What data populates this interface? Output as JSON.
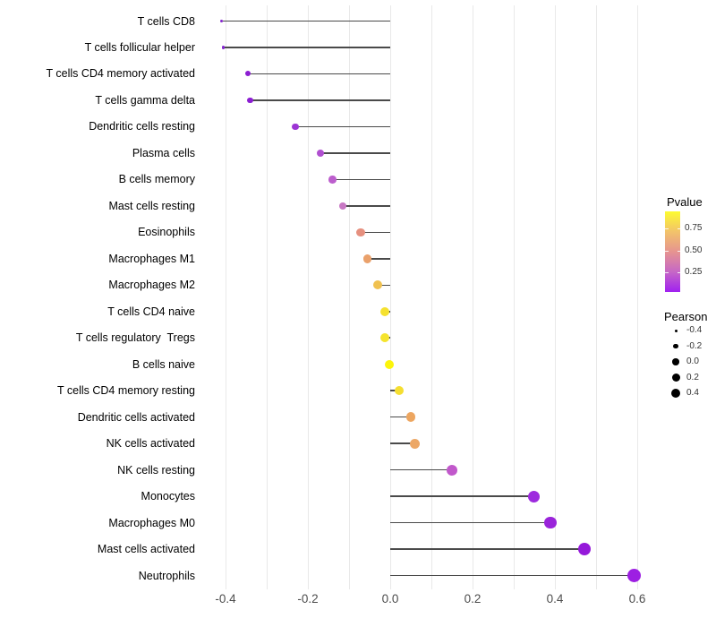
{
  "chart_data": {
    "type": "scatter",
    "variant": "horizontal-lollipop",
    "title": "",
    "xlabel": "",
    "ylabel": "",
    "x_ticks": [
      {
        "label": "-0.4",
        "value": -0.4
      },
      {
        "label": "-0.2",
        "value": -0.2
      },
      {
        "label": "0.0",
        "value": 0.0
      },
      {
        "label": "0.2",
        "value": 0.2
      },
      {
        "label": "0.4",
        "value": 0.4
      },
      {
        "label": "0.6",
        "value": 0.6
      }
    ],
    "xlim": [
      -0.445,
      0.655
    ],
    "grid": {
      "vertical_step": 0.1,
      "color": "#e9e9e9",
      "horizontal": false
    },
    "stem_color": "#4a4a4a",
    "legend_position": "right",
    "points": [
      {
        "label": "T cells CD8",
        "pearson": -0.41,
        "color": "#8526cf",
        "diameter": 3
      },
      {
        "label": "T cells follicular helper",
        "pearson": -0.405,
        "color": "#8526cf",
        "diameter": 3.5
      },
      {
        "label": "T cells CD4 memory activated",
        "pearson": -0.345,
        "color": "#8c1ed2",
        "diameter": 6
      },
      {
        "label": "T cells gamma delta",
        "pearson": -0.34,
        "color": "#8c1ed2",
        "diameter": 6.5
      },
      {
        "label": "Dendritic cells resting",
        "pearson": -0.23,
        "color": "#9c35d4",
        "diameter": 7.5
      },
      {
        "label": "Plasma cells",
        "pearson": -0.17,
        "color": "#b04fd0",
        "diameter": 8
      },
      {
        "label": "B cells memory",
        "pearson": -0.14,
        "color": "#bc5ecd",
        "diameter": 8.5
      },
      {
        "label": "Mast cells resting",
        "pearson": -0.115,
        "color": "#c878c4",
        "diameter": 8.5
      },
      {
        "label": "Eosinophils",
        "pearson": -0.072,
        "color": "#e6907f",
        "diameter": 9.5
      },
      {
        "label": "Macrophages M1",
        "pearson": -0.055,
        "color": "#eaa16b",
        "diameter": 9.5
      },
      {
        "label": "Macrophages M2",
        "pearson": -0.03,
        "color": "#f0c150",
        "diameter": 10
      },
      {
        "label": "T cells CD4 naive",
        "pearson": -0.012,
        "color": "#f5e12f",
        "diameter": 10
      },
      {
        "label": "T cells regulatory  Tregs",
        "pearson": -0.012,
        "color": "#f5e42e",
        "diameter": 10
      },
      {
        "label": "B cells naive",
        "pearson": -0.003,
        "color": "#fcf50a",
        "diameter": 10
      },
      {
        "label": "T cells CD4 memory resting",
        "pearson": 0.021,
        "color": "#f5de31",
        "diameter": 10
      },
      {
        "label": "Dendritic cells activated",
        "pearson": 0.05,
        "color": "#eda660",
        "diameter": 10.5
      },
      {
        "label": "NK cells activated",
        "pearson": 0.06,
        "color": "#eca766",
        "diameter": 11
      },
      {
        "label": "NK cells resting",
        "pearson": 0.151,
        "color": "#c158cb",
        "diameter": 12
      },
      {
        "label": "Monocytes",
        "pearson": 0.349,
        "color": "#9d2ade",
        "diameter": 13
      },
      {
        "label": "Macrophages M0",
        "pearson": 0.389,
        "color": "#9a24da",
        "diameter": 13.5
      },
      {
        "label": "Mast cells activated",
        "pearson": 0.472,
        "color": "#9519da",
        "diameter": 14
      },
      {
        "label": "Neutrophils",
        "pearson": 0.592,
        "color": "#9d1fe2",
        "diameter": 15.5
      }
    ],
    "legends": {
      "pvalue": {
        "title": "Pvalue",
        "tick_labels": [
          "0.75",
          "0.50",
          "0.25"
        ],
        "gradient_stops": [
          "#fdfb30",
          "#f2c36a",
          "#e69490",
          "#c667c6",
          "#a020f0"
        ]
      },
      "pearson": {
        "title": "Pearson",
        "dot_color": "#000000",
        "items": [
          {
            "label": "-0.4",
            "diameter": 3
          },
          {
            "label": "-0.2",
            "diameter": 5.5
          },
          {
            "label": "0.0",
            "diameter": 7.5
          },
          {
            "label": "0.2",
            "diameter": 9
          },
          {
            "label": "0.4",
            "diameter": 10.5
          }
        ]
      }
    }
  }
}
